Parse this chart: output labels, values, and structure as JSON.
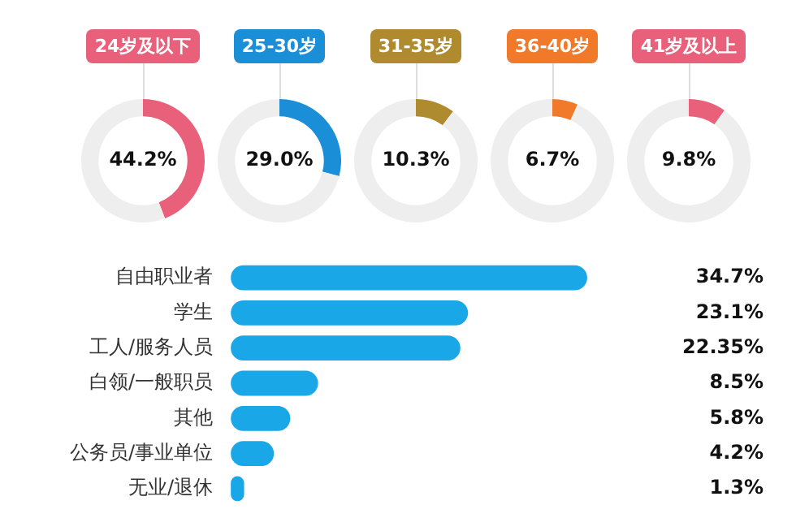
{
  "chart_data": [
    {
      "type": "donut",
      "title": "24岁及以下",
      "categories": [
        null,
        null
      ],
      "values": [
        44.2,
        55.8
      ],
      "colors": [
        "#e8607a",
        "#eeeeee"
      ],
      "value_labels": [
        "44.2%",
        null
      ]
    },
    {
      "type": "donut",
      "title": "25-30岁",
      "categories": [
        null,
        null
      ],
      "values": [
        29.0,
        71.0
      ],
      "colors": [
        "#1a8fd8",
        "#eeeeee"
      ],
      "value_labels": [
        "29.0%",
        null
      ]
    },
    {
      "type": "donut",
      "title": "31-35岁",
      "categories": [
        null,
        null
      ],
      "values": [
        10.3,
        89.7
      ],
      "colors": [
        "#b08a2e",
        "#eeeeee"
      ],
      "value_labels": [
        "10.3%",
        null
      ]
    },
    {
      "type": "donut",
      "title": "36-40岁",
      "categories": [
        null,
        null
      ],
      "values": [
        6.7,
        93.3
      ],
      "colors": [
        "#f07a2a",
        "#eeeeee"
      ],
      "value_labels": [
        "6.7%",
        null
      ]
    },
    {
      "type": "donut",
      "title": "41岁及以上",
      "categories": [
        null,
        null
      ],
      "values": [
        9.8,
        90.2
      ],
      "colors": [
        "#e8607a",
        "#eeeeee"
      ],
      "value_labels": [
        "9.8%",
        null
      ]
    },
    {
      "type": "bar",
      "orientation": "horizontal",
      "categories": [
        "自由职业者",
        "学生",
        "工人/服务人员",
        "白领/一般职员",
        "其他",
        "公务员/事业单位",
        "无业/退休"
      ],
      "values": [
        34.7,
        23.1,
        22.35,
        8.5,
        5.8,
        4.2,
        1.3
      ],
      "color": "#1aa7e8",
      "value_labels": [
        "34.7%",
        "23.1%",
        "22.35%",
        "8.5%",
        "5.8%",
        "4.2%",
        "1.3%"
      ]
    }
  ]
}
